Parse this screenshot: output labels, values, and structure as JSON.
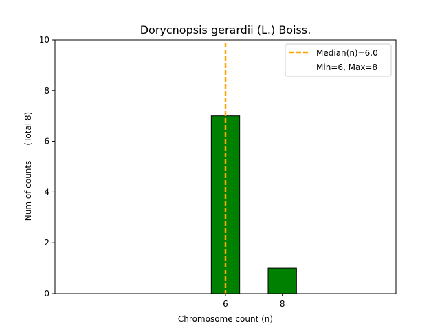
{
  "chart_data": {
    "type": "bar",
    "title": "Dorycnopsis gerardii (L.) Boiss.",
    "xlabel": "Chromosome count (n)",
    "ylabel_main": "Num of counts",
    "ylabel_total": "(Total 8)",
    "xlim": [
      0,
      12
    ],
    "ylim": [
      0,
      10
    ],
    "x_ticks": [
      6,
      8
    ],
    "y_ticks": [
      0,
      2,
      4,
      6,
      8,
      10
    ],
    "bars": [
      {
        "x": 6,
        "value": 7
      },
      {
        "x": 8,
        "value": 1
      }
    ],
    "bar_width": 1,
    "bar_color": "#008000",
    "bar_edge_color": "#000000",
    "median_line": {
      "x": 6.0,
      "color": "#FFA500",
      "style": "dashed"
    },
    "legend": {
      "position": "upper right",
      "entries": [
        "Median(n)=6.0",
        "Min=6, Max=8"
      ]
    }
  }
}
